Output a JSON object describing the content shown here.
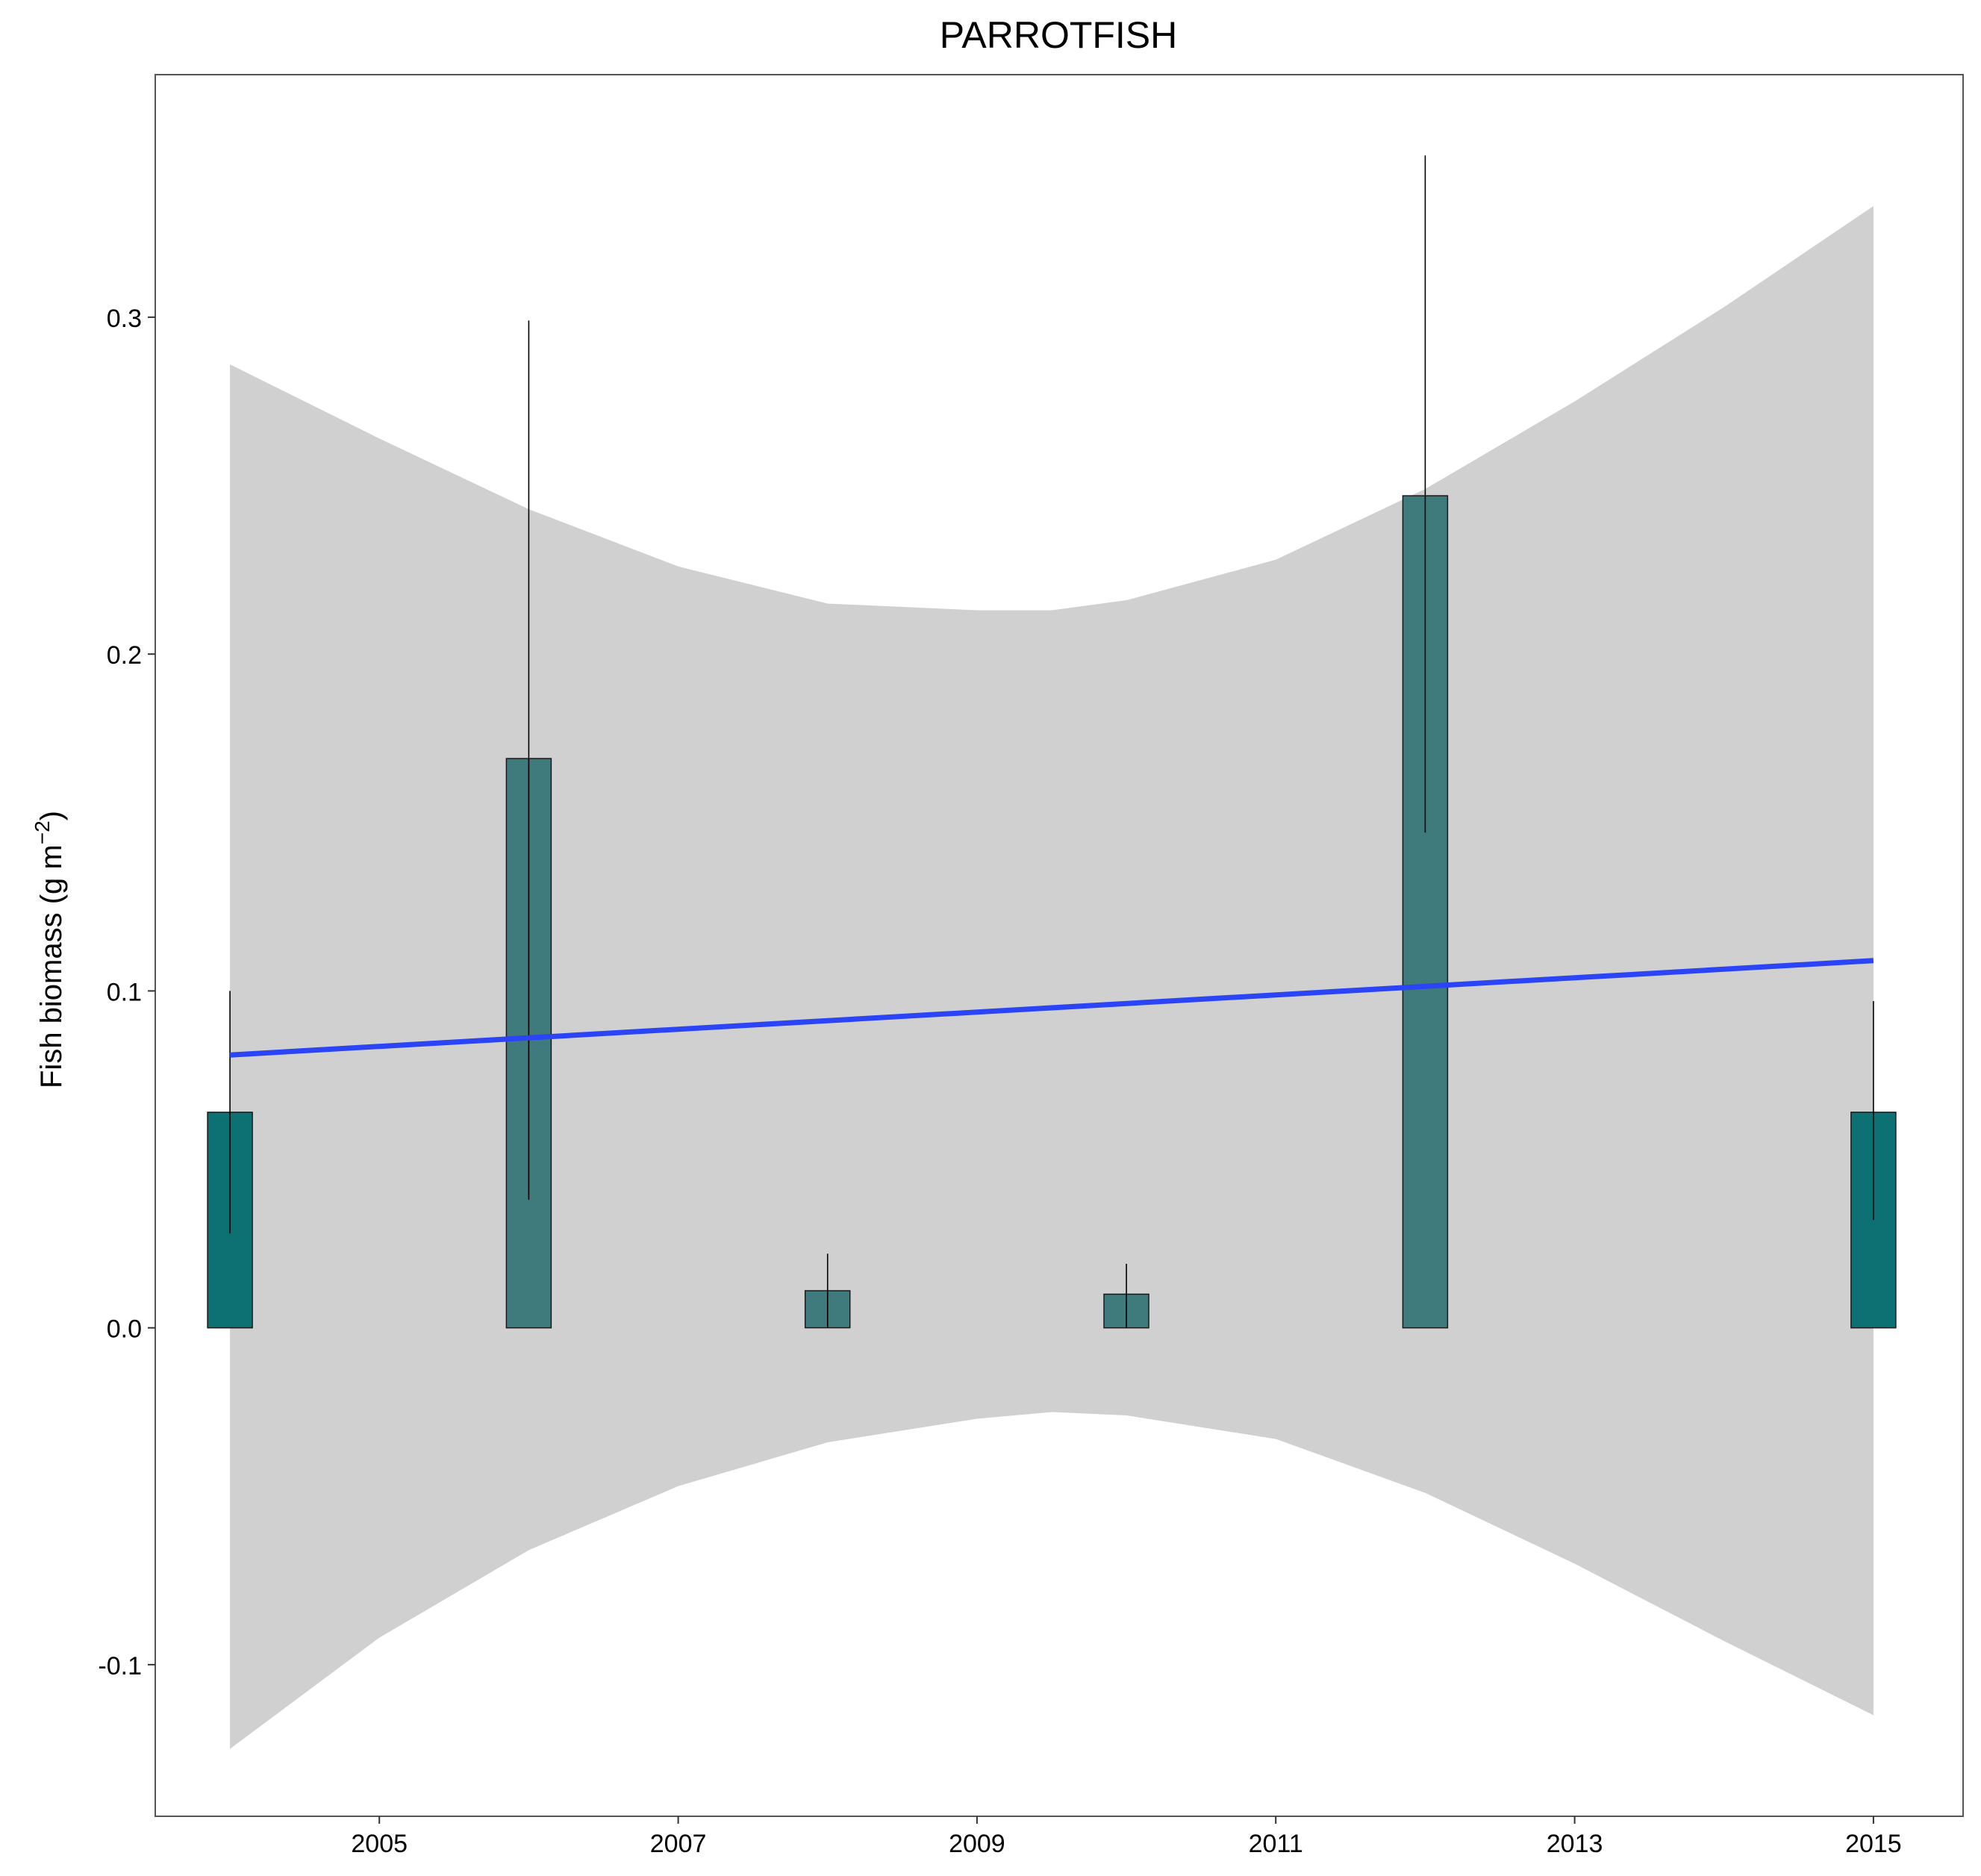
{
  "chart_data": {
    "type": "bar",
    "title": "PARROTFISH",
    "xlabel": "",
    "ylabel": "Fish biomass (g m",
    "ylabel_superscript": "−2",
    "ylabel_suffix": ")",
    "xlim": [
      2003.5,
      2015.6
    ],
    "ylim": [
      -0.145,
      0.372
    ],
    "x_ticks": [
      2005,
      2007,
      2009,
      2011,
      2013,
      2015
    ],
    "x_tick_labels": [
      "2005",
      "2007",
      "2009",
      "2011",
      "2013",
      "2015"
    ],
    "y_ticks": [
      -0.1,
      0.0,
      0.1,
      0.2,
      0.3
    ],
    "y_tick_labels": [
      "-0.1",
      "0.0",
      "0.1",
      "0.2",
      "0.3"
    ],
    "grid": false,
    "bars": [
      {
        "x": 2004,
        "value": 0.064,
        "error_low": 0.028,
        "error_high": 0.1,
        "color": "#0d7174"
      },
      {
        "x": 2006,
        "value": 0.169,
        "error_low": 0.038,
        "error_high": 0.299,
        "color": "#3f7a7c"
      },
      {
        "x": 2008,
        "value": 0.011,
        "error_low": 0.0,
        "error_high": 0.022,
        "color": "#3f7a7c"
      },
      {
        "x": 2010,
        "value": 0.01,
        "error_low": 0.0,
        "error_high": 0.019,
        "color": "#3f7a7c"
      },
      {
        "x": 2012,
        "value": 0.247,
        "error_low": 0.147,
        "error_high": 0.348,
        "color": "#3f7a7c"
      },
      {
        "x": 2015,
        "value": 0.064,
        "error_low": 0.032,
        "error_high": 0.097,
        "color": "#0d7174"
      }
    ],
    "bar_width_years": 0.3,
    "trend_line": {
      "x": [
        2004,
        2015
      ],
      "y": [
        0.081,
        0.109
      ],
      "color": "#2b44f5"
    },
    "confidence_band": {
      "x": [
        2004,
        2005,
        2006,
        2007,
        2008,
        2009,
        2009.5,
        2010,
        2011,
        2012,
        2013,
        2014,
        2015
      ],
      "upper": [
        0.286,
        0.264,
        0.243,
        0.226,
        0.215,
        0.213,
        0.213,
        0.216,
        0.228,
        0.249,
        0.275,
        0.303,
        0.333
      ],
      "lower": [
        -0.125,
        -0.092,
        -0.066,
        -0.047,
        -0.034,
        -0.027,
        -0.025,
        -0.026,
        -0.033,
        -0.049,
        -0.07,
        -0.093,
        -0.115
      ],
      "color": "#d0d0d0"
    }
  }
}
